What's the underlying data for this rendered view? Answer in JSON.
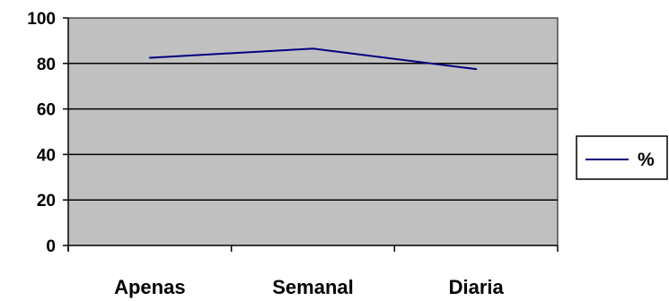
{
  "chart_data": {
    "type": "line",
    "categories": [
      "Apenas",
      "Semanal",
      "Diaria"
    ],
    "series": [
      {
        "name": "%",
        "values": [
          82.5,
          86.5,
          77.5
        ]
      }
    ],
    "ylim": [
      0,
      100
    ],
    "yticks": [
      0,
      20,
      40,
      60,
      80,
      100
    ],
    "grid": true,
    "legend": "right",
    "colors": {
      "plot_bg": "#c0c0c0",
      "line": "#000080",
      "grid": "#000000"
    }
  }
}
